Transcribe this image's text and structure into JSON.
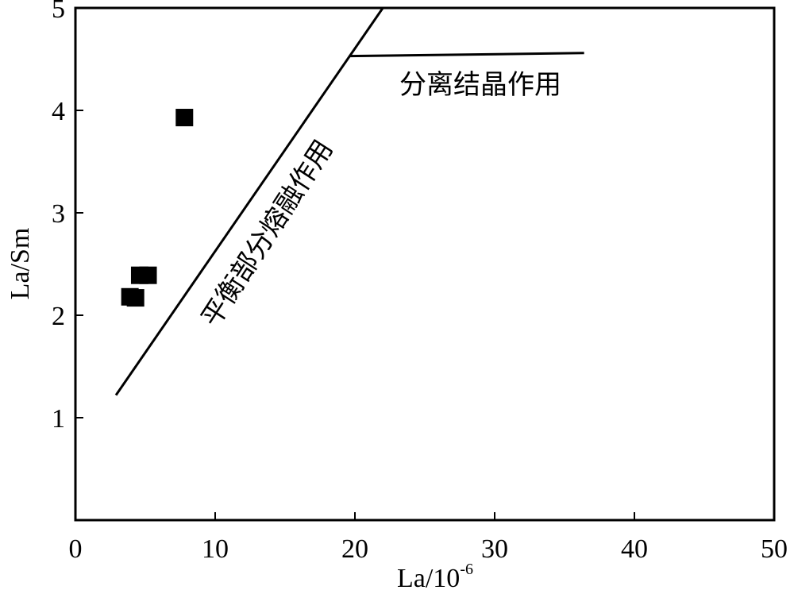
{
  "chart_data": {
    "type": "scatter",
    "xlabel": "La/10",
    "xlabel_superscript": "-6",
    "ylabel": "La/Sm",
    "xlim": [
      0,
      50
    ],
    "ylim": [
      0,
      5
    ],
    "x_ticks": [
      0,
      10,
      20,
      30,
      40,
      50
    ],
    "y_ticks": [
      1,
      2,
      3,
      4,
      5
    ],
    "x_tick_labels": [
      "0",
      "10",
      "20",
      "30",
      "40",
      "50"
    ],
    "y_tick_labels": [
      "1",
      "2",
      "3",
      "4",
      "5"
    ],
    "grid": false,
    "legend": "none",
    "marker_color": "#000000",
    "marker_shape": "square",
    "points": [
      {
        "x": 3.9,
        "y": 2.18
      },
      {
        "x": 4.3,
        "y": 2.17
      },
      {
        "x": 4.6,
        "y": 2.39
      },
      {
        "x": 5.2,
        "y": 2.39
      },
      {
        "x": 7.8,
        "y": 3.93
      }
    ],
    "lines": [
      {
        "label": "平衡部分熔融作用",
        "points": [
          [
            2.9,
            1.22
          ],
          [
            22.0,
            5.0
          ]
        ]
      },
      {
        "label": "分离结晶作用",
        "points": [
          [
            19.6,
            4.53
          ],
          [
            36.4,
            4.56
          ]
        ]
      }
    ]
  }
}
